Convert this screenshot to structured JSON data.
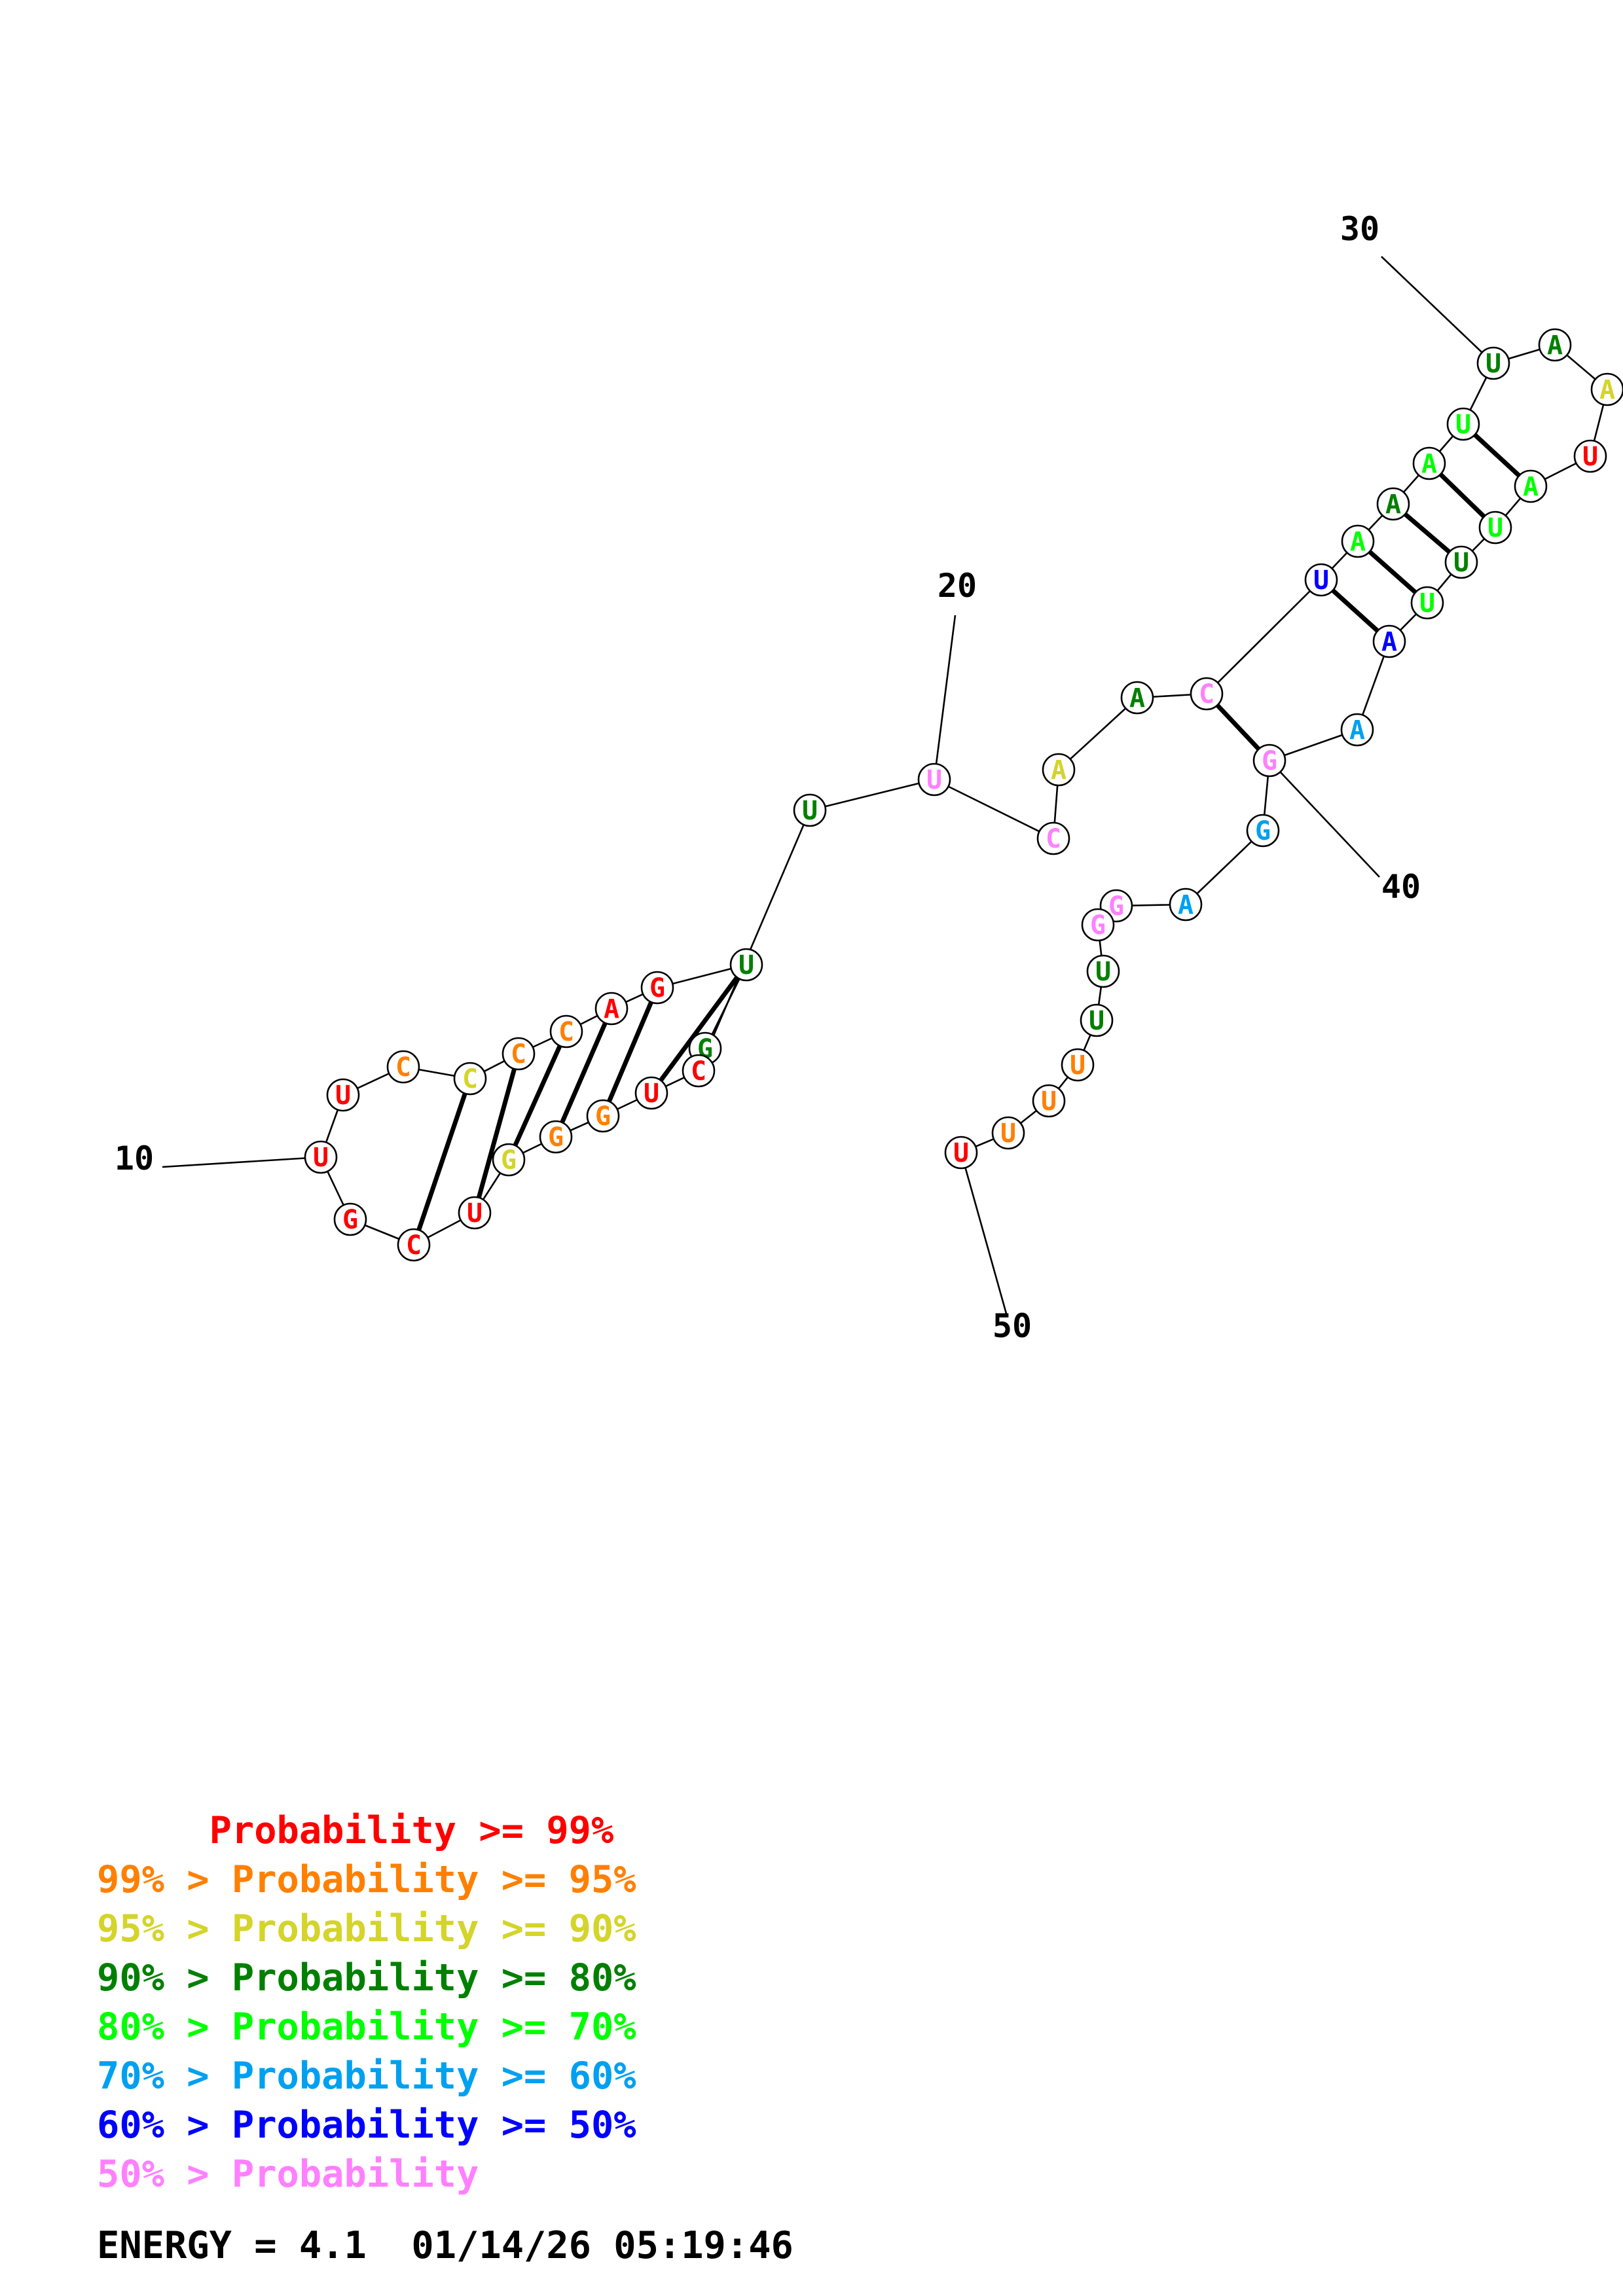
{
  "colors": {
    "p99": "#ff0000",
    "p95": "#ff8000",
    "p90": "#d4d42a",
    "p80": "#008000",
    "p70": "#00ff00",
    "p60": "#00a0f0",
    "p50": "#0000ff",
    "plow": "#ff80ff"
  },
  "nucleotides": [
    {
      "base": "G",
      "prob": "p80"
    },
    {
      "base": "U",
      "prob": "p80"
    },
    {
      "base": "G",
      "prob": "p99"
    },
    {
      "base": "A",
      "prob": "p99"
    },
    {
      "base": "C",
      "prob": "p95"
    },
    {
      "base": "C",
      "prob": "p95"
    },
    {
      "base": "C",
      "prob": "p90"
    },
    {
      "base": "C",
      "prob": "p95"
    },
    {
      "base": "U",
      "prob": "p99"
    },
    {
      "base": "U",
      "prob": "p99"
    },
    {
      "base": "G",
      "prob": "p99"
    },
    {
      "base": "C",
      "prob": "p99"
    },
    {
      "base": "U",
      "prob": "p99"
    },
    {
      "base": "G",
      "prob": "p90"
    },
    {
      "base": "G",
      "prob": "p95"
    },
    {
      "base": "G",
      "prob": "p95"
    },
    {
      "base": "U",
      "prob": "p99"
    },
    {
      "base": "C",
      "prob": "p99"
    },
    {
      "base": "U",
      "prob": "p80"
    },
    {
      "base": "U",
      "prob": "plow"
    },
    {
      "base": "C",
      "prob": "plow"
    },
    {
      "base": "A",
      "prob": "p90"
    },
    {
      "base": "A",
      "prob": "p80"
    },
    {
      "base": "C",
      "prob": "plow"
    },
    {
      "base": "U",
      "prob": "p50"
    },
    {
      "base": "A",
      "prob": "p70"
    },
    {
      "base": "A",
      "prob": "p80"
    },
    {
      "base": "A",
      "prob": "p70"
    },
    {
      "base": "U",
      "prob": "p70"
    },
    {
      "base": "U",
      "prob": "p80"
    },
    {
      "base": "A",
      "prob": "p80"
    },
    {
      "base": "A",
      "prob": "p90"
    },
    {
      "base": "U",
      "prob": "p99"
    },
    {
      "base": "A",
      "prob": "p70"
    },
    {
      "base": "U",
      "prob": "p70"
    },
    {
      "base": "U",
      "prob": "p80"
    },
    {
      "base": "U",
      "prob": "p70"
    },
    {
      "base": "A",
      "prob": "p50"
    },
    {
      "base": "A",
      "prob": "p60"
    },
    {
      "base": "G",
      "prob": "plow"
    },
    {
      "base": "G",
      "prob": "p60"
    },
    {
      "base": "A",
      "prob": "p60"
    },
    {
      "base": "G",
      "prob": "plow"
    },
    {
      "base": "G",
      "prob": "plow"
    },
    {
      "base": "U",
      "prob": "p80"
    },
    {
      "base": "U",
      "prob": "p80"
    },
    {
      "base": "U",
      "prob": "p95"
    },
    {
      "base": "U",
      "prob": "p95"
    },
    {
      "base": "U",
      "prob": "p95"
    },
    {
      "base": "U",
      "prob": "p99"
    }
  ],
  "base_pairs": [
    [
      1,
      18
    ],
    [
      2,
      17
    ],
    [
      3,
      16
    ],
    [
      4,
      15
    ],
    [
      5,
      14
    ],
    [
      6,
      13
    ],
    [
      7,
      12
    ],
    [
      24,
      40
    ],
    [
      25,
      38
    ],
    [
      26,
      37
    ],
    [
      27,
      36
    ],
    [
      28,
      35
    ],
    [
      29,
      34
    ]
  ],
  "position_labels": [
    "10",
    "20",
    "30",
    "40",
    "50"
  ],
  "legend": [
    {
      "prefix": "    ",
      "text": " Probability >= 99%",
      "prob": "p99"
    },
    {
      "prefix": "99% > ",
      "text": "Probability >= 95%",
      "prob": "p95"
    },
    {
      "prefix": "95% > ",
      "text": "Probability >= 90%",
      "prob": "p90"
    },
    {
      "prefix": "90% > ",
      "text": "Probability >= 80%",
      "prob": "p80"
    },
    {
      "prefix": "80% > ",
      "text": "Probability >= 70%",
      "prob": "p70"
    },
    {
      "prefix": "70% > ",
      "text": "Probability >= 60%",
      "prob": "p60"
    },
    {
      "prefix": "60% > ",
      "text": "Probability >= 50%",
      "prob": "p50"
    },
    {
      "prefix": "50% > ",
      "text": "Probability",
      "prob": "plow"
    }
  ],
  "energy": "ENERGY = 4.1  01/14/26 05:19:46"
}
